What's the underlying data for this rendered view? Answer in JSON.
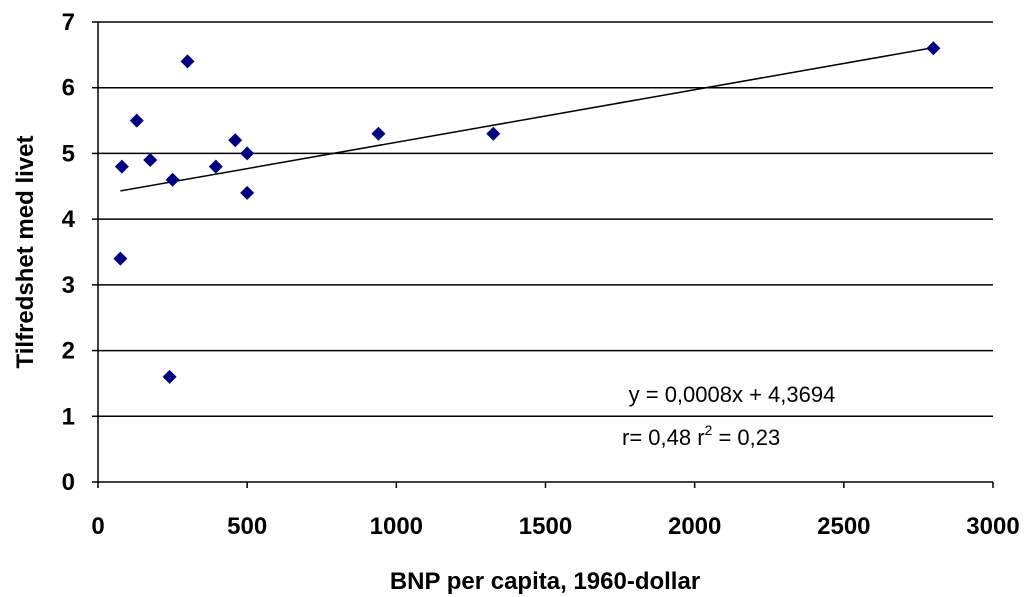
{
  "chart_data": {
    "type": "scatter",
    "xlabel": "BNP per capita, 1960-dollar",
    "ylabel": "Tilfredshet med livet",
    "xlim": [
      0,
      3000
    ],
    "ylim": [
      0,
      7
    ],
    "x_ticks": [
      "0",
      "500",
      "1000",
      "1500",
      "2000",
      "2500",
      "3000"
    ],
    "y_ticks": [
      "0",
      "1",
      "2",
      "3",
      "4",
      "5",
      "6",
      "7"
    ],
    "grid": "horizontal",
    "marker": "diamond",
    "marker_color": "#000080",
    "points": [
      {
        "x": 80,
        "y": 4.8
      },
      {
        "x": 75,
        "y": 3.4
      },
      {
        "x": 130,
        "y": 5.5
      },
      {
        "x": 175,
        "y": 4.9
      },
      {
        "x": 250,
        "y": 4.6
      },
      {
        "x": 240,
        "y": 1.6
      },
      {
        "x": 300,
        "y": 6.4
      },
      {
        "x": 395,
        "y": 4.8
      },
      {
        "x": 460,
        "y": 5.2
      },
      {
        "x": 500,
        "y": 5.0
      },
      {
        "x": 500,
        "y": 4.4
      },
      {
        "x": 940,
        "y": 5.3
      },
      {
        "x": 1325,
        "y": 5.3
      },
      {
        "x": 2800,
        "y": 6.6
      }
    ],
    "trendline": {
      "slope": 0.0008,
      "intercept": 4.3694,
      "x_from": 75,
      "x_to": 2800
    },
    "annotations": {
      "equation": "y = 0,0008x + 4,3694",
      "r_text": "r= 0,48 r",
      "r_sup": "2",
      "r2_text": " = 0,23"
    }
  }
}
